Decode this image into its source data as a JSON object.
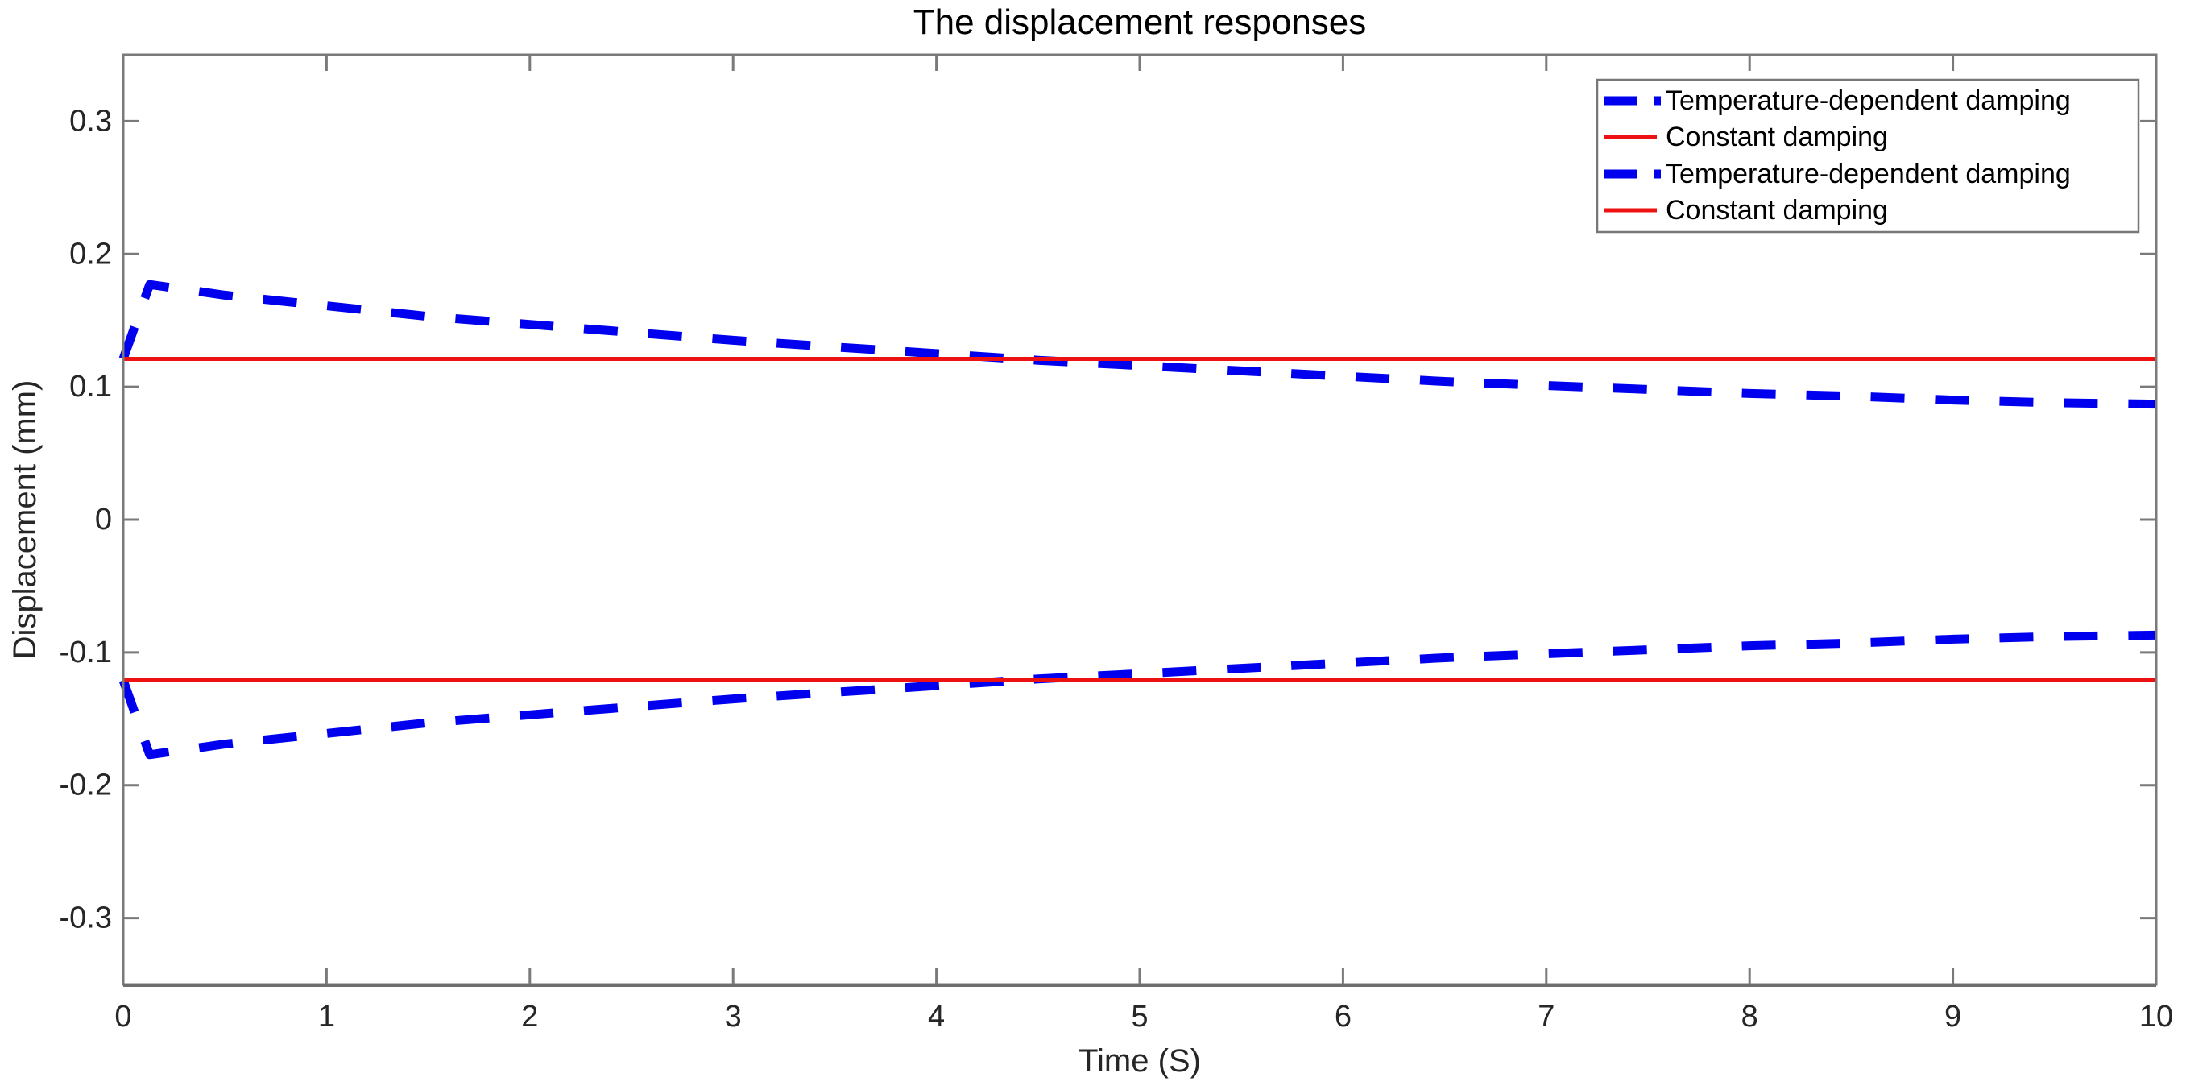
{
  "chart_data": {
    "type": "line",
    "title": "The displacement responses",
    "xlabel": "Time (S)",
    "ylabel": "Displacement (mm)",
    "xlim": [
      0,
      10
    ],
    "ylim": [
      -0.35,
      0.35
    ],
    "x_ticks": [
      {
        "v": 0,
        "label": "0"
      },
      {
        "v": 1,
        "label": "1"
      },
      {
        "v": 2,
        "label": "2"
      },
      {
        "v": 3,
        "label": "3"
      },
      {
        "v": 4,
        "label": "4"
      },
      {
        "v": 5,
        "label": "5"
      },
      {
        "v": 6,
        "label": "6"
      },
      {
        "v": 7,
        "label": "7"
      },
      {
        "v": 8,
        "label": "8"
      },
      {
        "v": 9,
        "label": "9"
      },
      {
        "v": 10,
        "label": "10"
      }
    ],
    "y_ticks": [
      {
        "v": 0.3,
        "label": "0.3"
      },
      {
        "v": 0.2,
        "label": "0.2"
      },
      {
        "v": 0.1,
        "label": "0.1"
      },
      {
        "v": 0,
        "label": "0"
      },
      {
        "v": -0.1,
        "label": "-0.1"
      },
      {
        "v": -0.2,
        "label": "-0.2"
      },
      {
        "v": -0.3,
        "label": "-0.3"
      }
    ],
    "grid": false,
    "legend_position": "northeast",
    "series": [
      {
        "name": "Temperature-dependent damping",
        "color": "#0000EE",
        "style": "dashed",
        "line_width": 11,
        "points": [
          [
            0,
            0.121
          ],
          [
            0.13,
            0.177
          ],
          [
            0.5,
            0.169
          ],
          [
            1,
            0.161
          ],
          [
            1.5,
            0.153
          ],
          [
            2,
            0.147
          ],
          [
            2.5,
            0.141
          ],
          [
            3,
            0.135
          ],
          [
            3.5,
            0.13
          ],
          [
            4,
            0.125
          ],
          [
            4.5,
            0.12
          ],
          [
            5,
            0.116
          ],
          [
            5.5,
            0.112
          ],
          [
            6,
            0.108
          ],
          [
            6.5,
            0.104
          ],
          [
            7,
            0.101
          ],
          [
            7.5,
            0.098
          ],
          [
            8,
            0.095
          ],
          [
            8.5,
            0.093
          ],
          [
            9,
            0.09
          ],
          [
            9.5,
            0.088
          ],
          [
            10,
            0.087
          ]
        ]
      },
      {
        "name": "Constant damping",
        "color": "#EE1111",
        "style": "solid",
        "line_width": 5,
        "points": [
          [
            0,
            0.121
          ],
          [
            10,
            0.121
          ]
        ]
      },
      {
        "name": "Temperature-dependent damping",
        "color": "#0000EE",
        "style": "dashed",
        "line_width": 11,
        "points": [
          [
            0,
            -0.121
          ],
          [
            0.13,
            -0.177
          ],
          [
            0.5,
            -0.169
          ],
          [
            1,
            -0.161
          ],
          [
            1.5,
            -0.153
          ],
          [
            2,
            -0.147
          ],
          [
            2.5,
            -0.141
          ],
          [
            3,
            -0.135
          ],
          [
            3.5,
            -0.13
          ],
          [
            4,
            -0.125
          ],
          [
            4.5,
            -0.12
          ],
          [
            5,
            -0.116
          ],
          [
            5.5,
            -0.112
          ],
          [
            6,
            -0.108
          ],
          [
            6.5,
            -0.104
          ],
          [
            7,
            -0.101
          ],
          [
            7.5,
            -0.098
          ],
          [
            8,
            -0.095
          ],
          [
            8.5,
            -0.093
          ],
          [
            9,
            -0.09
          ],
          [
            9.5,
            -0.088
          ],
          [
            10,
            -0.087
          ]
        ]
      },
      {
        "name": "Constant damping",
        "color": "#EE1111",
        "style": "solid",
        "line_width": 5,
        "points": [
          [
            0,
            -0.121
          ],
          [
            10,
            -0.121
          ]
        ]
      }
    ],
    "colors": {
      "frame": "#7a7a7a",
      "tick": "#7a7a7a",
      "tick_label": "#262626",
      "background": "#ffffff"
    }
  }
}
